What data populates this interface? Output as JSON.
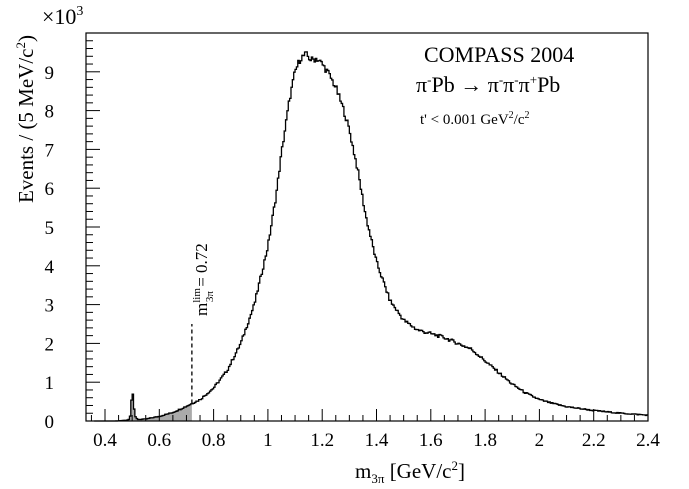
{
  "chart_data": {
    "type": "histogram",
    "title": "COMPASS 2004",
    "subtitle_parts": {
      "left_a": "π",
      "left_a_sup": "-",
      "left_b": "Pb ",
      "arrow": "→",
      "r1": " π",
      "r1_sup": "-",
      "r2": "π",
      "r2_sup": "-",
      "r3": "π",
      "r3_sup": "+",
      "r4": "Pb"
    },
    "cut_label_parts": {
      "a": "t' < 0.001 GeV",
      "a_sup": "2",
      "b": "/c",
      "b_sup": "2"
    },
    "xlabel_parts": {
      "m": "m",
      "sub": "3π",
      "rest": " [GeV/c",
      "sup": "2",
      "close": "]"
    },
    "ylabel_parts": {
      "a": "Events / (5 MeV/c",
      "sup": "2",
      "b": ")"
    },
    "multiplier_parts": {
      "base": "×10",
      "exp": "3"
    },
    "xlim": [
      0.33,
      2.4
    ],
    "ylim": [
      0,
      10.0
    ],
    "xticks": [
      "0.4",
      "0.6",
      "0.8",
      "1",
      "1.2",
      "1.4",
      "1.6",
      "1.8",
      "2",
      "2.2",
      "2.4"
    ],
    "xtick_values": [
      0.4,
      0.6,
      0.8,
      1.0,
      1.2,
      1.4,
      1.6,
      1.8,
      2.0,
      2.2,
      2.4
    ],
    "yticks": [
      "0",
      "1",
      "2",
      "3",
      "4",
      "5",
      "6",
      "7",
      "8",
      "9"
    ],
    "ytick_values": [
      0,
      1,
      2,
      3,
      4,
      5,
      6,
      7,
      8,
      9
    ],
    "bin_width_gev": 0.005,
    "curve_points": [
      [
        0.36,
        0.0
      ],
      [
        0.4,
        0.0
      ],
      [
        0.44,
        0.0
      ],
      [
        0.48,
        0.02
      ],
      [
        0.49,
        0.05
      ],
      [
        0.495,
        0.2
      ],
      [
        0.5,
        0.92
      ],
      [
        0.505,
        0.5
      ],
      [
        0.51,
        0.12
      ],
      [
        0.52,
        0.04
      ],
      [
        0.55,
        0.05
      ],
      [
        0.6,
        0.12
      ],
      [
        0.65,
        0.22
      ],
      [
        0.7,
        0.38
      ],
      [
        0.72,
        0.45
      ],
      [
        0.75,
        0.55
      ],
      [
        0.8,
        0.85
      ],
      [
        0.85,
        1.3
      ],
      [
        0.9,
        2.0
      ],
      [
        0.95,
        3.0
      ],
      [
        1.0,
        4.5
      ],
      [
        1.03,
        5.8
      ],
      [
        1.05,
        6.9
      ],
      [
        1.08,
        8.3
      ],
      [
        1.1,
        9.0
      ],
      [
        1.12,
        9.35
      ],
      [
        1.14,
        9.45
      ],
      [
        1.16,
        9.3
      ],
      [
        1.18,
        9.35
      ],
      [
        1.2,
        9.2
      ],
      [
        1.22,
        9.0
      ],
      [
        1.25,
        8.6
      ],
      [
        1.28,
        8.0
      ],
      [
        1.3,
        7.5
      ],
      [
        1.33,
        6.5
      ],
      [
        1.36,
        5.3
      ],
      [
        1.4,
        4.1
      ],
      [
        1.45,
        3.1
      ],
      [
        1.5,
        2.6
      ],
      [
        1.55,
        2.35
      ],
      [
        1.6,
        2.25
      ],
      [
        1.65,
        2.15
      ],
      [
        1.7,
        2.0
      ],
      [
        1.75,
        1.85
      ],
      [
        1.8,
        1.55
      ],
      [
        1.85,
        1.25
      ],
      [
        1.9,
        0.95
      ],
      [
        1.95,
        0.72
      ],
      [
        2.0,
        0.55
      ],
      [
        2.05,
        0.45
      ],
      [
        2.1,
        0.37
      ],
      [
        2.2,
        0.27
      ],
      [
        2.3,
        0.2
      ],
      [
        2.4,
        0.15
      ]
    ],
    "shaded_region": {
      "from": 0.33,
      "to": 0.72,
      "color": "#aaaaaa"
    },
    "cut_line": {
      "x": 0.72,
      "y_top": 2.5,
      "label_parts": {
        "m": "m",
        "sup": "lim",
        "sub": "3π",
        "rest": " = 0.72"
      }
    },
    "line_color": "#000000",
    "frame_color": "#000000"
  }
}
